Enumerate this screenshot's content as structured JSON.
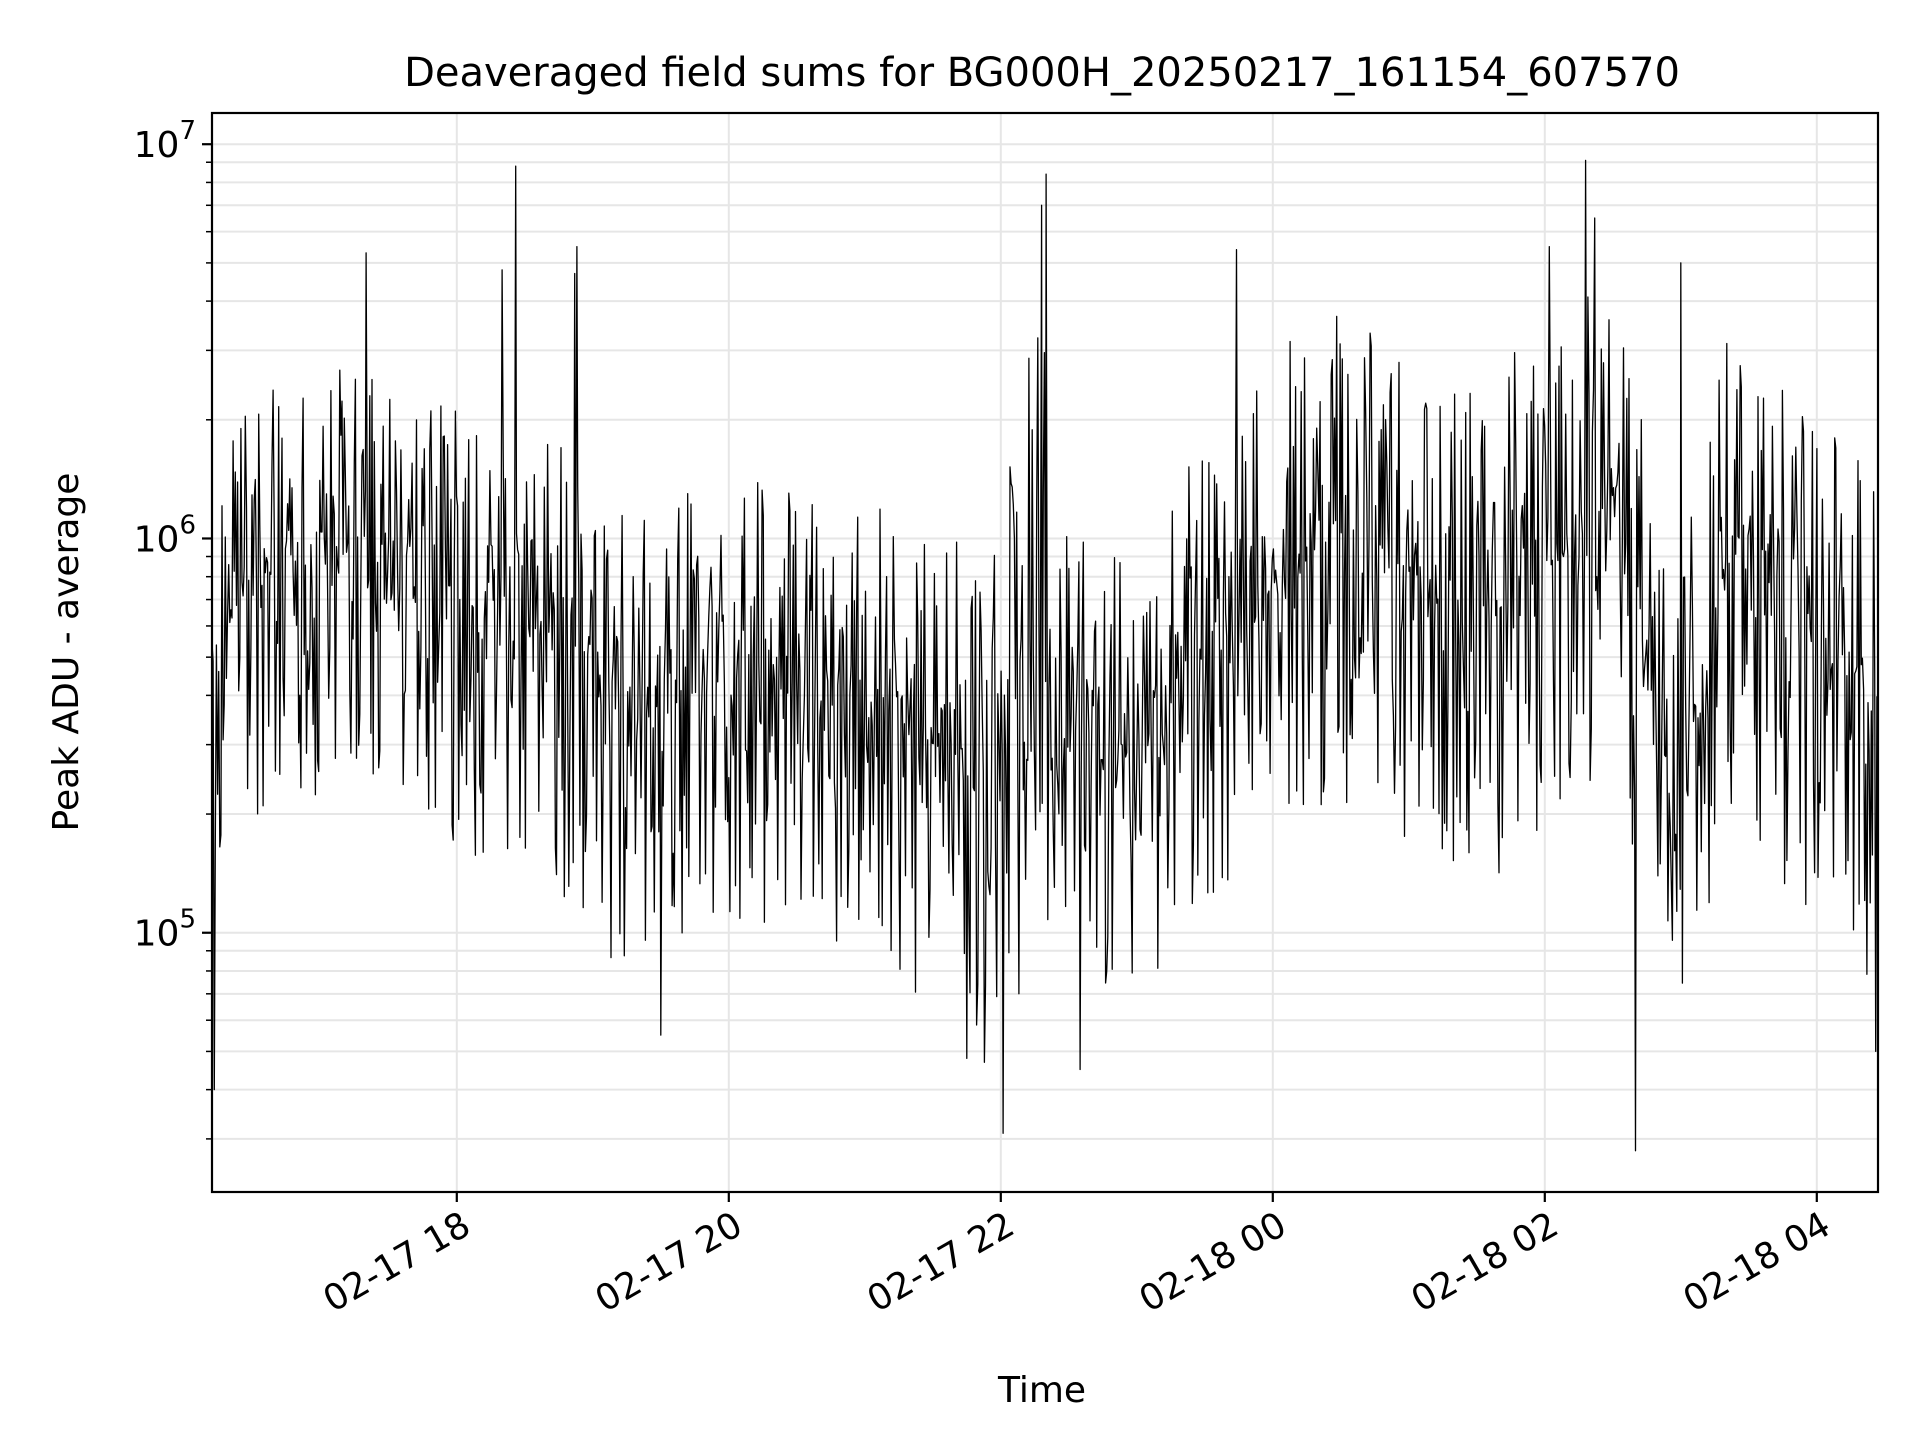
{
  "chart_data": {
    "type": "line",
    "title": "Deaveraged field sums for BG000H_20250217_161154_607570",
    "xlabel": "Time",
    "ylabel": "Peak ADU - average",
    "yscale": "log",
    "grid": true,
    "legend": "none",
    "xlim": [
      "2025-02-17 16:12",
      "2025-02-18 04:27"
    ],
    "ylim": [
      22000,
      12000000
    ],
    "xticks": [
      "02-17 18",
      "02-17 20",
      "02-17 22",
      "02-18 00",
      "02-18 02",
      "02-18 04"
    ],
    "xtick_times": [
      "2025-02-17 18:00",
      "2025-02-17 20:00",
      "2025-02-17 22:00",
      "2025-02-18 00:00",
      "2025-02-18 02:00",
      "2025-02-18 04:00"
    ],
    "ytick_exponents": [
      5,
      6,
      7
    ],
    "ytick_base": "10",
    "color": "#000000",
    "series": [
      {
        "x": [
          "2025-02-17 16:12",
          "2025-02-17 16:20",
          "2025-02-17 16:30",
          "2025-02-17 16:40",
          "2025-02-17 16:50",
          "2025-02-17 17:00",
          "2025-02-17 17:10",
          "2025-02-17 17:20",
          "2025-02-17 17:30",
          "2025-02-17 17:40",
          "2025-02-17 17:50",
          "2025-02-17 18:00",
          "2025-02-17 18:10",
          "2025-02-17 18:20",
          "2025-02-17 18:30",
          "2025-02-17 18:40",
          "2025-02-17 18:50",
          "2025-02-17 19:00",
          "2025-02-17 19:10",
          "2025-02-17 19:20",
          "2025-02-17 19:30",
          "2025-02-17 19:40",
          "2025-02-17 19:50",
          "2025-02-17 20:00",
          "2025-02-17 20:10",
          "2025-02-17 20:20",
          "2025-02-17 20:30",
          "2025-02-17 20:40",
          "2025-02-17 20:50",
          "2025-02-17 21:00",
          "2025-02-17 21:10",
          "2025-02-17 21:20",
          "2025-02-17 21:30",
          "2025-02-17 21:40",
          "2025-02-17 21:50",
          "2025-02-17 22:00",
          "2025-02-17 22:10",
          "2025-02-17 22:20",
          "2025-02-17 22:30",
          "2025-02-17 22:40",
          "2025-02-17 22:50",
          "2025-02-17 23:00",
          "2025-02-17 23:10",
          "2025-02-17 23:20",
          "2025-02-17 23:30",
          "2025-02-17 23:40",
          "2025-02-17 23:50",
          "2025-02-18 00:00",
          "2025-02-18 00:10",
          "2025-02-18 00:20",
          "2025-02-18 00:30",
          "2025-02-18 00:40",
          "2025-02-18 00:50",
          "2025-02-18 01:00",
          "2025-02-18 01:10",
          "2025-02-18 01:20",
          "2025-02-18 01:30",
          "2025-02-18 01:40",
          "2025-02-18 01:50",
          "2025-02-18 02:00",
          "2025-02-18 02:10",
          "2025-02-18 02:20",
          "2025-02-18 02:30",
          "2025-02-18 02:40",
          "2025-02-18 02:50",
          "2025-02-18 03:00",
          "2025-02-18 03:10",
          "2025-02-18 03:20",
          "2025-02-18 03:30",
          "2025-02-18 03:40",
          "2025-02-18 03:50",
          "2025-02-18 04:00",
          "2025-02-18 04:10",
          "2025-02-18 04:20",
          "2025-02-18 04:27"
        ],
        "center": [
          500000,
          650000,
          750000,
          800000,
          780000,
          820000,
          850000,
          800000,
          750000,
          760000,
          720000,
          700000,
          650000,
          620000,
          600000,
          580000,
          550000,
          480000,
          420000,
          400000,
          380000,
          400000,
          420000,
          450000,
          420000,
          450000,
          430000,
          450000,
          420000,
          380000,
          350000,
          320000,
          300000,
          280000,
          260000,
          250000,
          500000,
          600000,
          320000,
          280000,
          270000,
          300000,
          350000,
          400000,
          450000,
          500000,
          600000,
          750000,
          850000,
          900000,
          950000,
          1000000,
          900000,
          850000,
          750000,
          700000,
          650000,
          700000,
          800000,
          850000,
          900000,
          1100000,
          1300000,
          800000,
          300000,
          250000,
          400000,
          900000,
          1000000,
          850000,
          700000,
          600000,
          500000,
          450000,
          300000
        ],
        "low": [
          140000,
          160000,
          190000,
          210000,
          210000,
          220000,
          230000,
          220000,
          200000,
          190000,
          180000,
          170000,
          150000,
          140000,
          130000,
          120000,
          110000,
          95000,
          80000,
          75000,
          80000,
          90000,
          100000,
          110000,
          100000,
          105000,
          100000,
          100000,
          90000,
          80000,
          75000,
          70000,
          65000,
          55000,
          50000,
          35000,
          70000,
          90000,
          60000,
          55000,
          60000,
          70000,
          80000,
          95000,
          110000,
          130000,
          150000,
          170000,
          180000,
          190000,
          200000,
          200000,
          190000,
          170000,
          150000,
          140000,
          130000,
          140000,
          160000,
          170000,
          180000,
          200000,
          250000,
          120000,
          60000,
          50000,
          80000,
          150000,
          160000,
          140000,
          120000,
          110000,
          100000,
          80000,
          55000
        ],
        "high": [
          1400000,
          1800000,
          2200000,
          2500000,
          2500000,
          2600000,
          2700000,
          2600000,
          2400000,
          2300000,
          2200000,
          2100000,
          2000000,
          2000000,
          1900000,
          1800000,
          1700000,
          1500000,
          1400000,
          1300000,
          1200000,
          1300000,
          1400000,
          1500000,
          1400000,
          1500000,
          1400000,
          1500000,
          1400000,
          1300000,
          1200000,
          1100000,
          1000000,
          1000000,
          950000,
          1000000,
          3000000,
          3500000,
          1100000,
          950000,
          950000,
          1100000,
          1300000,
          1500000,
          1700000,
          2000000,
          2400000,
          2900000,
          3300000,
          3500000,
          3700000,
          3800000,
          3500000,
          3300000,
          3000000,
          2800000,
          2600000,
          2800000,
          3200000,
          3400000,
          3600000,
          4200000,
          5000000,
          3000000,
          1200000,
          1000000,
          1600000,
          3200000,
          3500000,
          3000000,
          2600000,
          2200000,
          1900000,
          1700000,
          1200000
        ]
      }
    ],
    "spikes": [
      {
        "x": "2025-02-17 16:13",
        "y": 40000
      },
      {
        "x": "2025-02-17 17:20",
        "y": 5300000
      },
      {
        "x": "2025-02-17 18:20",
        "y": 4800000
      },
      {
        "x": "2025-02-17 18:26",
        "y": 8800000
      },
      {
        "x": "2025-02-17 18:52",
        "y": 4700000
      },
      {
        "x": "2025-02-17 18:53",
        "y": 5500000
      },
      {
        "x": "2025-02-17 19:30",
        "y": 55000
      },
      {
        "x": "2025-02-17 21:45",
        "y": 48000
      },
      {
        "x": "2025-02-17 22:01",
        "y": 31000
      },
      {
        "x": "2025-02-17 22:18",
        "y": 7000000
      },
      {
        "x": "2025-02-17 22:20",
        "y": 8400000
      },
      {
        "x": "2025-02-17 22:35",
        "y": 45000
      },
      {
        "x": "2025-02-17 23:44",
        "y": 5400000
      },
      {
        "x": "2025-02-18 02:02",
        "y": 5500000
      },
      {
        "x": "2025-02-18 02:18",
        "y": 9100000
      },
      {
        "x": "2025-02-18 02:22",
        "y": 6500000
      },
      {
        "x": "2025-02-18 02:40",
        "y": 28000
      },
      {
        "x": "2025-02-18 03:00",
        "y": 5000000
      },
      {
        "x": "2025-02-18 04:26",
        "y": 50000
      }
    ]
  }
}
